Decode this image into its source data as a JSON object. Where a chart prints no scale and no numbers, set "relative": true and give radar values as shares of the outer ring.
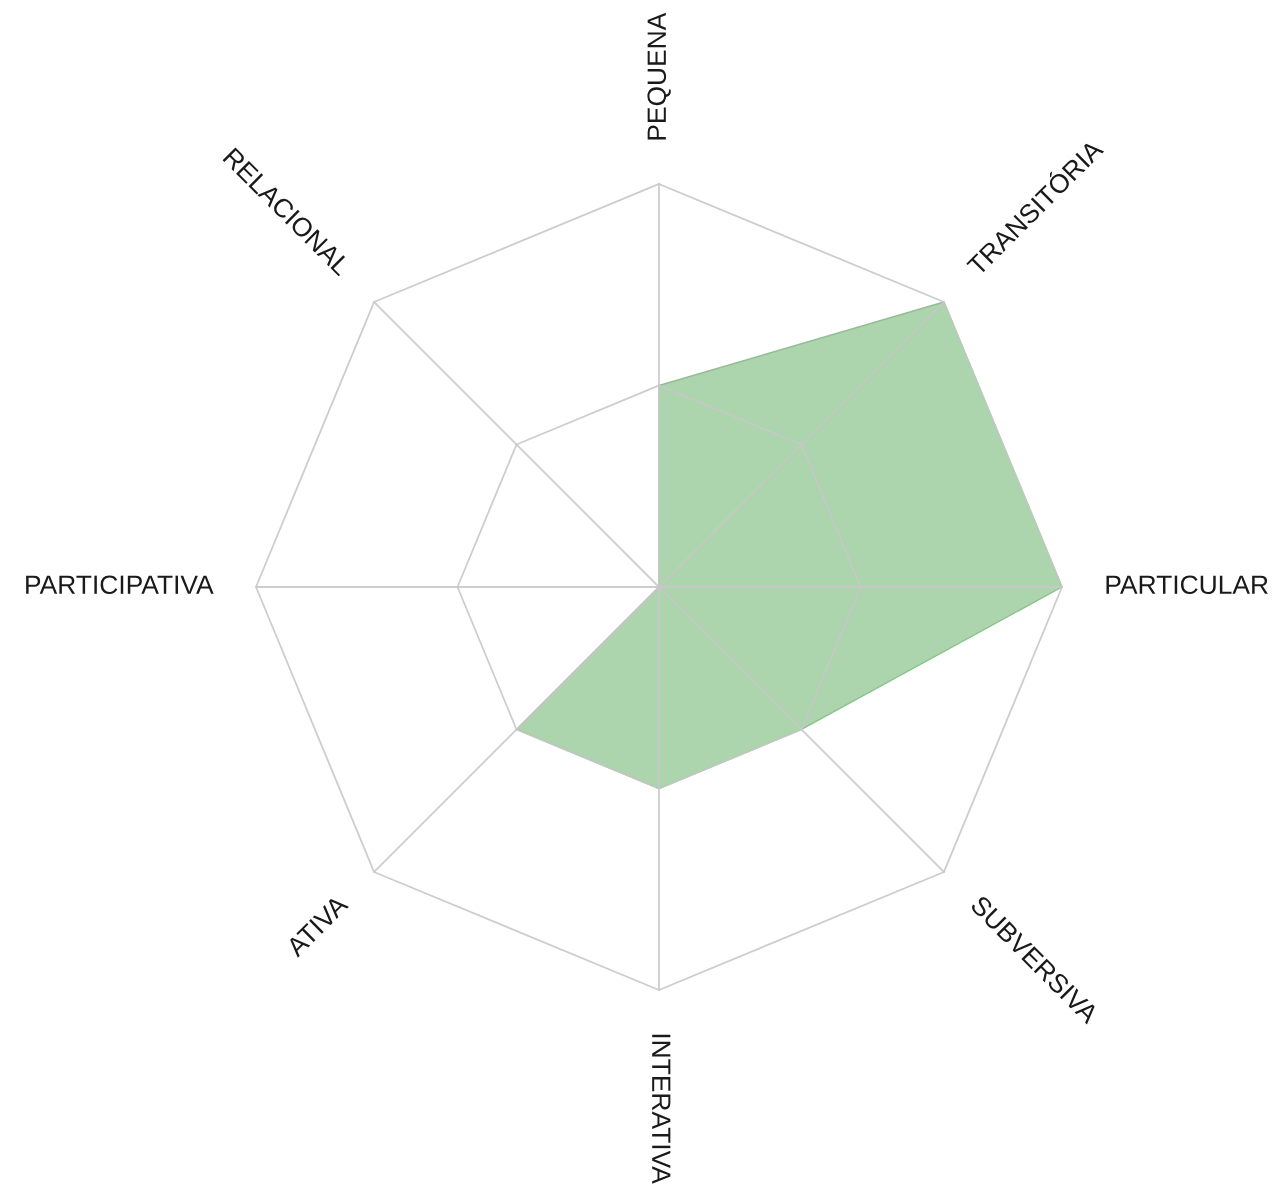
{
  "chart_data": {
    "type": "radar",
    "relative": true,
    "categories": [
      "PEQUENA",
      "TRANSITÓRIA",
      "PARTICULAR",
      "SUBVERSIVA",
      "INTERATIVA",
      "ATIVA",
      "PARTICIPATIVA",
      "RELACIONAL"
    ],
    "grid": true,
    "series": [
      {
        "color": "#acd4ad",
        "values": [
          0.5,
          1,
          1,
          0.5,
          0.5,
          0.5,
          0,
          0
        ]
      }
    ]
  }
}
